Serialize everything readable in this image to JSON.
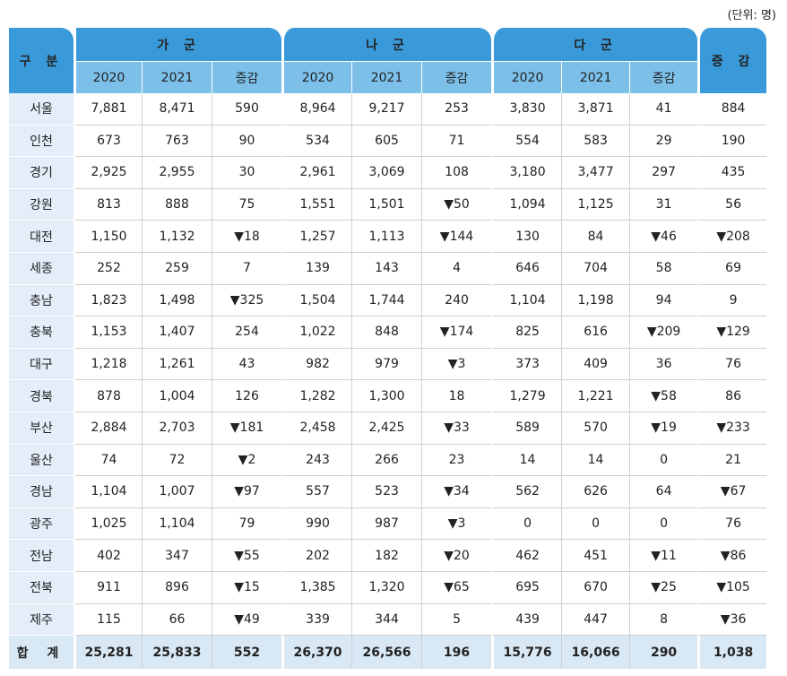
{
  "unit_note": "(단위: 명)",
  "headers": {
    "gubun": "구 분",
    "groups": [
      "가 군",
      "나 군",
      "다 군"
    ],
    "total": "증 감",
    "sub": [
      "2020",
      "2021",
      "증감"
    ]
  },
  "rows": [
    {
      "region": "서울",
      "cells": [
        "7,881",
        "8,471",
        "590",
        "8,964",
        "9,217",
        "253",
        "3,830",
        "3,871",
        "41",
        "884"
      ]
    },
    {
      "region": "인천",
      "cells": [
        "673",
        "763",
        "90",
        "534",
        "605",
        "71",
        "554",
        "583",
        "29",
        "190"
      ]
    },
    {
      "region": "경기",
      "cells": [
        "2,925",
        "2,955",
        "30",
        "2,961",
        "3,069",
        "108",
        "3,180",
        "3,477",
        "297",
        "435"
      ]
    },
    {
      "region": "강원",
      "cells": [
        "813",
        "888",
        "75",
        "1,551",
        "1,501",
        "▼50",
        "1,094",
        "1,125",
        "31",
        "56"
      ]
    },
    {
      "region": "대전",
      "cells": [
        "1,150",
        "1,132",
        "▼18",
        "1,257",
        "1,113",
        "▼144",
        "130",
        "84",
        "▼46",
        "▼208"
      ]
    },
    {
      "region": "세종",
      "cells": [
        "252",
        "259",
        "7",
        "139",
        "143",
        "4",
        "646",
        "704",
        "58",
        "69"
      ]
    },
    {
      "region": "충남",
      "cells": [
        "1,823",
        "1,498",
        "▼325",
        "1,504",
        "1,744",
        "240",
        "1,104",
        "1,198",
        "94",
        "9"
      ]
    },
    {
      "region": "충북",
      "cells": [
        "1,153",
        "1,407",
        "254",
        "1,022",
        "848",
        "▼174",
        "825",
        "616",
        "▼209",
        "▼129"
      ]
    },
    {
      "region": "대구",
      "cells": [
        "1,218",
        "1,261",
        "43",
        "982",
        "979",
        "▼3",
        "373",
        "409",
        "36",
        "76"
      ]
    },
    {
      "region": "경북",
      "cells": [
        "878",
        "1,004",
        "126",
        "1,282",
        "1,300",
        "18",
        "1,279",
        "1,221",
        "▼58",
        "86"
      ]
    },
    {
      "region": "부산",
      "cells": [
        "2,884",
        "2,703",
        "▼181",
        "2,458",
        "2,425",
        "▼33",
        "589",
        "570",
        "▼19",
        "▼233"
      ]
    },
    {
      "region": "울산",
      "cells": [
        "74",
        "72",
        "▼2",
        "243",
        "266",
        "23",
        "14",
        "14",
        "0",
        "21"
      ]
    },
    {
      "region": "경남",
      "cells": [
        "1,104",
        "1,007",
        "▼97",
        "557",
        "523",
        "▼34",
        "562",
        "626",
        "64",
        "▼67"
      ]
    },
    {
      "region": "광주",
      "cells": [
        "1,025",
        "1,104",
        "79",
        "990",
        "987",
        "▼3",
        "0",
        "0",
        "0",
        "76"
      ]
    },
    {
      "region": "전남",
      "cells": [
        "402",
        "347",
        "▼55",
        "202",
        "182",
        "▼20",
        "462",
        "451",
        "▼11",
        "▼86"
      ]
    },
    {
      "region": "전북",
      "cells": [
        "911",
        "896",
        "▼15",
        "1,385",
        "1,320",
        "▼65",
        "695",
        "670",
        "▼25",
        "▼105"
      ]
    },
    {
      "region": "제주",
      "cells": [
        "115",
        "66",
        "▼49",
        "339",
        "344",
        "5",
        "439",
        "447",
        "8",
        "▼36"
      ]
    }
  ],
  "total_row": {
    "region": "합 계",
    "cells": [
      "25,281",
      "25,833",
      "552",
      "26,370",
      "26,566",
      "196",
      "15,776",
      "16,066",
      "290",
      "1,038"
    ]
  }
}
